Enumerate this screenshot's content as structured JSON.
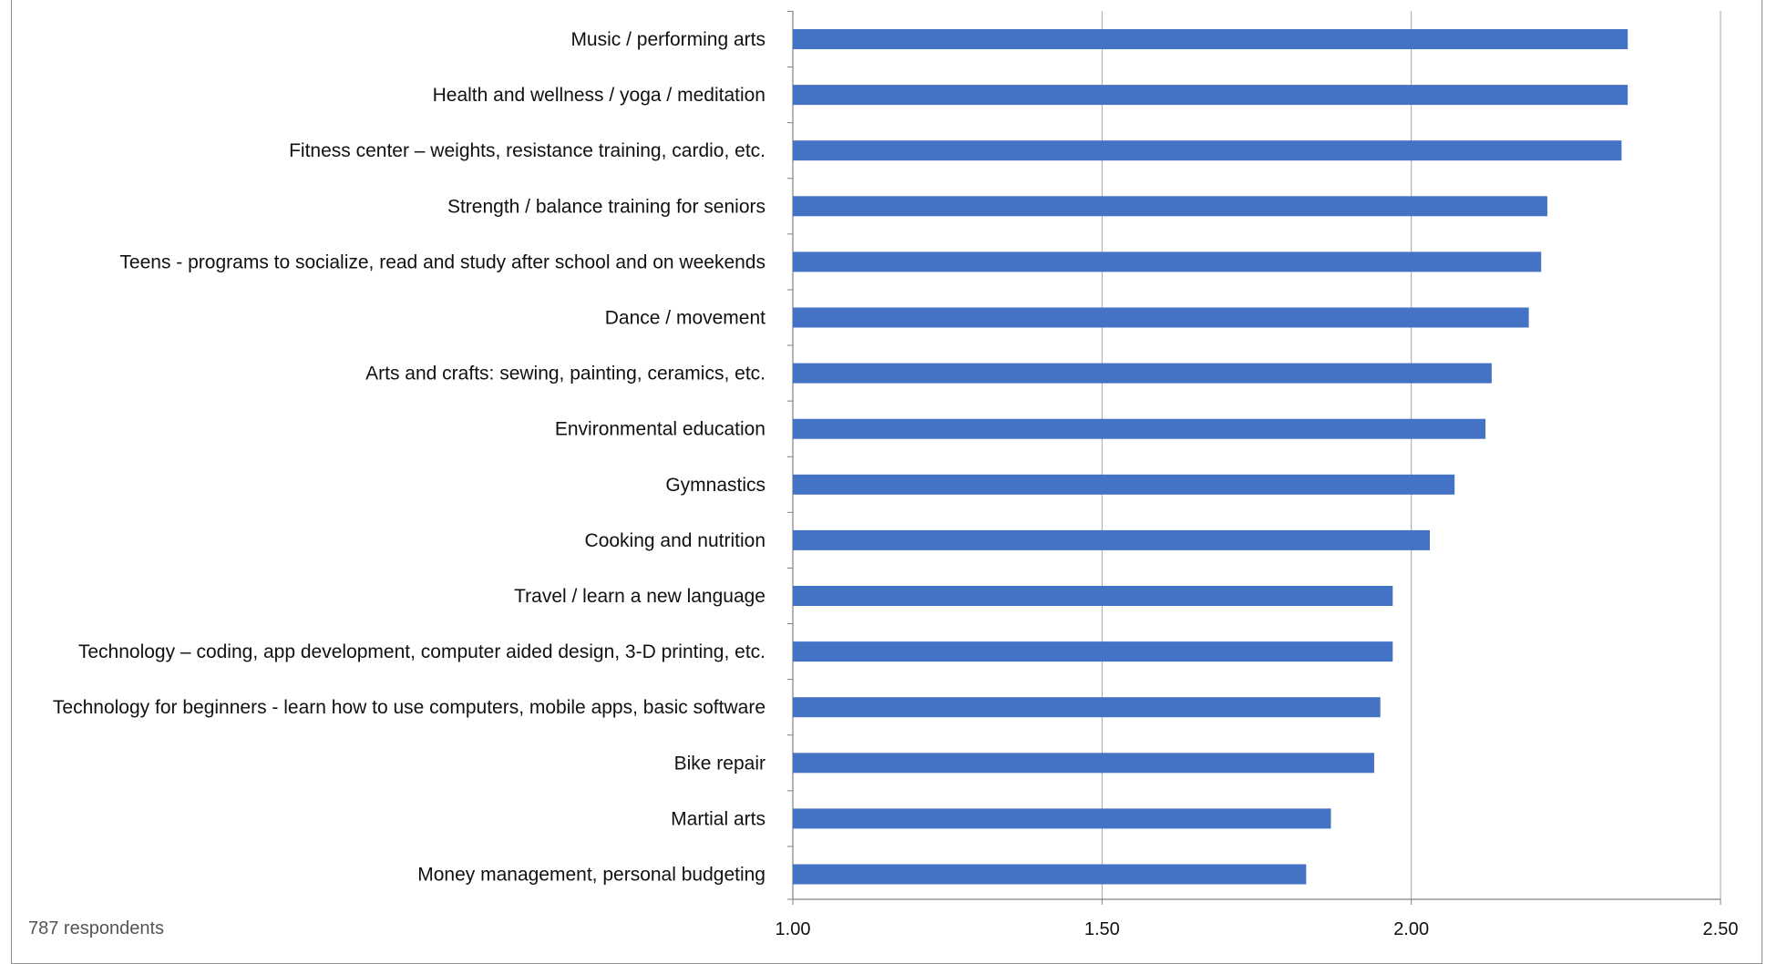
{
  "chart_data": {
    "type": "bar",
    "orientation": "horizontal",
    "title": "",
    "xlabel": "",
    "ylabel": "",
    "xlim": [
      1.0,
      2.5
    ],
    "x_ticks": [
      "1.00",
      "1.50",
      "2.00",
      "2.50"
    ],
    "x_tick_values": [
      1.0,
      1.5,
      2.0,
      2.5
    ],
    "grid": true,
    "legend": "none",
    "bar_color": "#4472c4",
    "categories": [
      "Music / performing arts",
      "Health and wellness / yoga / meditation",
      "Fitness center – weights, resistance training, cardio, etc.",
      "Strength / balance training for seniors",
      "Teens - programs to socialize, read and study after school and on weekends",
      "Dance / movement",
      "Arts and crafts: sewing, painting, ceramics, etc.",
      "Environmental education",
      "Gymnastics",
      "Cooking and nutrition",
      "Travel / learn a new language",
      "Technology – coding, app development, computer aided design, 3-D printing, etc.",
      "Technology for beginners - learn how to use computers, mobile apps, basic software",
      "Bike repair",
      "Martial arts",
      "Money management, personal budgeting"
    ],
    "values": [
      2.35,
      2.35,
      2.34,
      2.22,
      2.21,
      2.19,
      2.13,
      2.12,
      2.07,
      2.03,
      1.97,
      1.97,
      1.95,
      1.94,
      1.87,
      1.83
    ],
    "note": "787 respondents"
  }
}
